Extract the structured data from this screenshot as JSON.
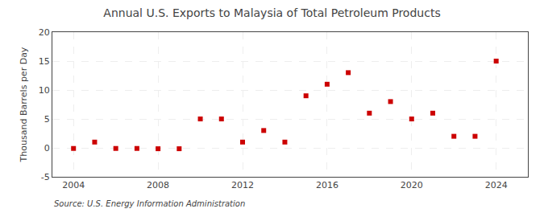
{
  "chart_data": {
    "type": "scatter",
    "title": "Annual U.S. Exports to Malaysia of Total Petroleum Products",
    "ylabel": "Thousand Barrels per Day",
    "source": "Source: U.S. Energy Information Administration",
    "x": [
      2004,
      2005,
      2006,
      2007,
      2008,
      2009,
      2010,
      2011,
      2012,
      2013,
      2014,
      2015,
      2016,
      2017,
      2018,
      2019,
      2020,
      2021,
      2022,
      2023,
      2024
    ],
    "values": [
      -0.1,
      1.0,
      -0.1,
      -0.1,
      -0.15,
      -0.15,
      5.0,
      5.0,
      1.0,
      3.0,
      1.0,
      9.0,
      11.0,
      13.0,
      6.0,
      8.0,
      5.0,
      6.0,
      2.0,
      2.0,
      15.0
    ],
    "color": "#cc0000",
    "marker": "square",
    "xlim": [
      2003.0,
      2025.5
    ],
    "xticks": [
      2004,
      2008,
      2012,
      2016,
      2020,
      2024
    ],
    "ylim": [
      -5,
      20
    ],
    "yticks": [
      -5,
      0,
      5,
      10,
      15,
      20
    ],
    "grid": true
  }
}
